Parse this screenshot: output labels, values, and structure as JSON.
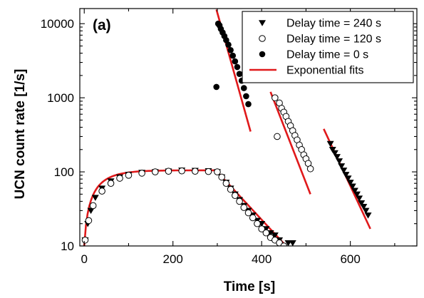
{
  "chart_data": {
    "type": "scatter",
    "panel_label": "(a)",
    "xlabel": "Time [s]",
    "ylabel": "UCN count rate [1/s]",
    "xlim": [
      -10,
      750
    ],
    "ylim": [
      10,
      16000
    ],
    "yscale": "log",
    "xticks": [
      0,
      200,
      400,
      600
    ],
    "yticks": [
      10,
      100,
      1000,
      10000
    ],
    "legend_position": "top-right",
    "series": [
      {
        "name": "Delay time = 240 s",
        "marker": "triangle-down-filled",
        "color": "#000000",
        "x": [
          2,
          8,
          15,
          25,
          40,
          60,
          80,
          100,
          130,
          160,
          190,
          220,
          250,
          280,
          300,
          310,
          320,
          330,
          340,
          350,
          360,
          370,
          380,
          390,
          400,
          410,
          420,
          430,
          440,
          460,
          470,
          555,
          560,
          565,
          570,
          575,
          580,
          585,
          590,
          595,
          600,
          605,
          610,
          615,
          620,
          625,
          630,
          635,
          640
        ],
        "y": [
          12,
          20,
          30,
          45,
          60,
          75,
          85,
          92,
          98,
          100,
          102,
          105,
          104,
          103,
          100,
          85,
          72,
          60,
          50,
          42,
          35,
          30,
          26,
          22,
          20,
          17,
          15,
          14,
          12,
          11,
          11,
          240,
          200,
          180,
          160,
          140,
          120,
          105,
          92,
          82,
          72,
          64,
          56,
          50,
          44,
          38,
          34,
          30,
          26
        ]
      },
      {
        "name": "Delay time = 120 s",
        "marker": "circle-open",
        "color": "#000000",
        "x": [
          2,
          10,
          20,
          40,
          60,
          80,
          100,
          130,
          160,
          190,
          220,
          250,
          280,
          300,
          310,
          320,
          330,
          340,
          350,
          360,
          370,
          380,
          390,
          400,
          410,
          420,
          430,
          440,
          450,
          430,
          435,
          440,
          445,
          450,
          455,
          460,
          465,
          470,
          475,
          480,
          485,
          490,
          495,
          500,
          505,
          510
        ],
        "y": [
          12,
          22,
          35,
          55,
          70,
          82,
          90,
          96,
          100,
          102,
          103,
          102,
          101,
          100,
          85,
          70,
          58,
          48,
          40,
          33,
          28,
          24,
          20,
          17,
          15,
          13,
          12,
          11,
          10,
          1000,
          300,
          850,
          720,
          640,
          560,
          480,
          420,
          360,
          310,
          270,
          230,
          200,
          170,
          150,
          130,
          110
        ]
      },
      {
        "name": "Delay time = 0 s",
        "marker": "circle-filled",
        "color": "#000000",
        "x": [
          298,
          302,
          305,
          308,
          312,
          316,
          320,
          325,
          330,
          335,
          340,
          345,
          350,
          355,
          360,
          365,
          370
        ],
        "y": [
          1400,
          10000,
          9500,
          8500,
          7600,
          6800,
          6000,
          5200,
          4400,
          3700,
          3100,
          2600,
          2100,
          1700,
          1350,
          1050,
          820
        ]
      }
    ],
    "fits": {
      "name": "Exponential fits",
      "color": "#e0191b",
      "segments": [
        {
          "kind": "fill",
          "t_start": 0,
          "t_end": 300,
          "amplitude": 105,
          "tau": 38,
          "offset": 10
        },
        {
          "kind": "decay",
          "t_start": 298,
          "t_end": 375,
          "y_start": 15500,
          "y_end": 350
        },
        {
          "kind": "decay",
          "t_start": 300,
          "t_end": 455,
          "y_start": 100,
          "y_end": 10
        },
        {
          "kind": "decay",
          "t_start": 420,
          "t_end": 510,
          "y_start": 1200,
          "y_end": 50
        },
        {
          "kind": "decay",
          "t_start": 540,
          "t_end": 645,
          "y_start": 380,
          "y_end": 17
        }
      ]
    }
  }
}
